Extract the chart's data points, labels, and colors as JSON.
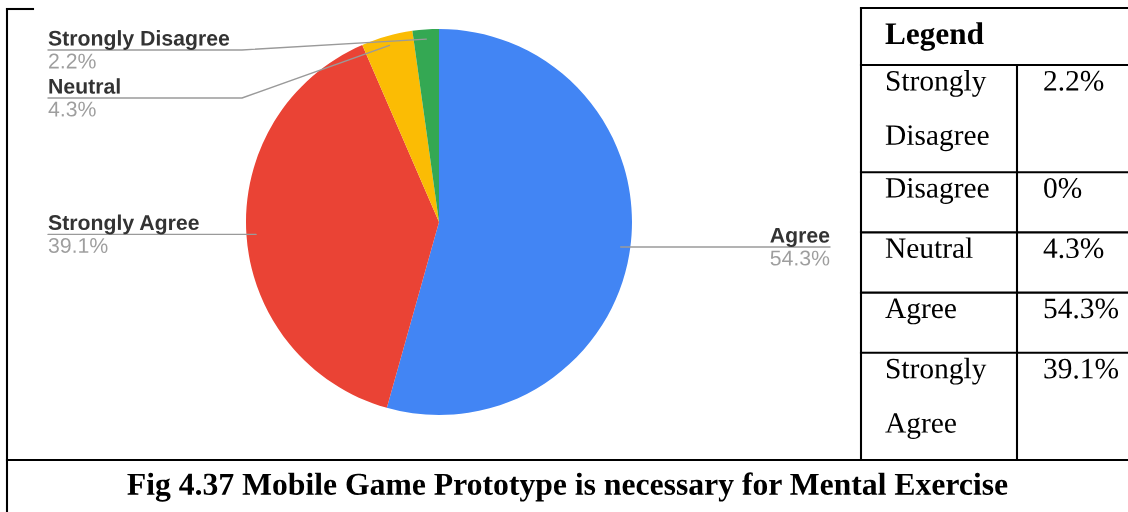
{
  "chart_data": [
    {
      "type": "pie",
      "title": "Fig 4.37 Mobile Game Prototype is necessary for Mental Exercise",
      "categories": [
        "Agree",
        "Strongly Agree",
        "Neutral",
        "Strongly Disagree"
      ],
      "values": [
        54.3,
        39.1,
        4.3,
        2.2
      ],
      "colors": [
        "#4285f4",
        "#ea4335",
        "#fbbc04",
        "#34a853"
      ],
      "value_labels": [
        "54.3%",
        "39.1%",
        "4.3%",
        "2.2%"
      ]
    },
    {
      "type": "other",
      "title": "Legend",
      "categories": [
        "Strongly Disagree",
        "Disagree",
        "Neutral",
        "Agree",
        "Strongly Agree"
      ],
      "value_labels": [
        "2.2%",
        "0%",
        "4.3%",
        "54.3%",
        "39.1%"
      ]
    }
  ]
}
